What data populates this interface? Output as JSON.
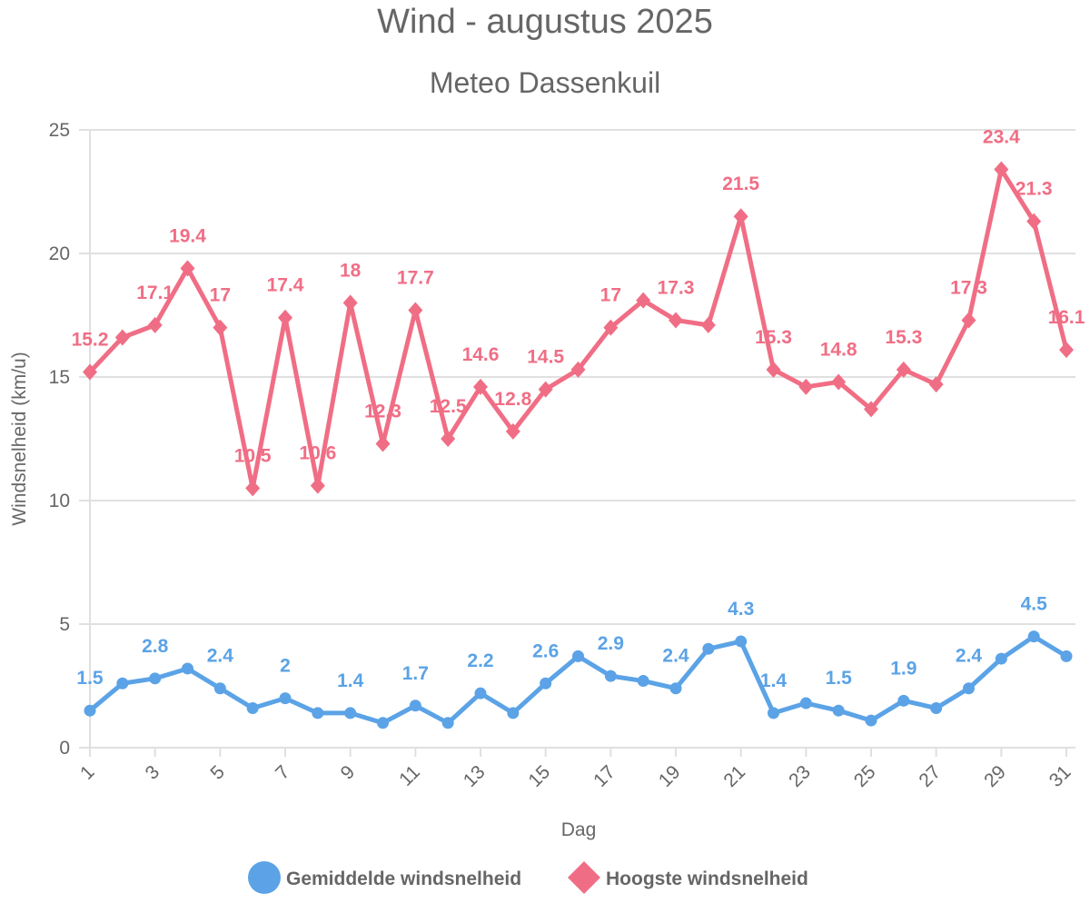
{
  "chart_data": {
    "type": "line",
    "title": "Wind - augustus 2025",
    "subtitle": "Meteo Dassenkuil",
    "xlabel": "Dag",
    "ylabel": "Windsnelheid (km/u)",
    "ylim": [
      0,
      25
    ],
    "yticks": [
      0,
      5,
      10,
      15,
      20,
      25
    ],
    "xticks": [
      1,
      3,
      5,
      7,
      9,
      11,
      13,
      15,
      17,
      19,
      21,
      23,
      25,
      27,
      29,
      31
    ],
    "grid": true,
    "legend_position": "bottom",
    "x": [
      1,
      2,
      3,
      4,
      5,
      6,
      7,
      8,
      9,
      10,
      11,
      12,
      13,
      14,
      15,
      16,
      17,
      18,
      19,
      20,
      21,
      22,
      23,
      24,
      25,
      26,
      27,
      28,
      29,
      30,
      31
    ],
    "series": [
      {
        "name": "Gemiddelde windsnelheid",
        "color": "#5ba3e6",
        "marker": "circle",
        "values": [
          1.5,
          2.6,
          2.8,
          3.2,
          2.4,
          1.6,
          2.0,
          1.4,
          1.4,
          1.0,
          1.7,
          1.0,
          2.2,
          1.4,
          2.6,
          3.7,
          2.9,
          2.7,
          2.4,
          4.0,
          4.3,
          1.4,
          1.8,
          1.5,
          1.1,
          1.9,
          1.6,
          2.4,
          3.6,
          4.5,
          3.7
        ],
        "labeled_days": [
          1,
          3,
          5,
          7,
          9,
          11,
          13,
          15,
          17,
          19,
          21,
          22,
          24,
          26,
          28,
          30
        ]
      },
      {
        "name": "Hoogste windsnelheid",
        "color": "#f06e85",
        "marker": "diamond",
        "values": [
          15.2,
          16.6,
          17.1,
          19.4,
          17.0,
          10.5,
          17.4,
          10.6,
          18.0,
          12.3,
          17.7,
          12.5,
          14.6,
          12.8,
          14.5,
          15.3,
          17.0,
          18.1,
          17.3,
          17.1,
          21.5,
          15.3,
          14.6,
          14.8,
          13.7,
          15.3,
          14.7,
          17.3,
          23.4,
          21.3,
          16.1
        ],
        "labeled_days": [
          1,
          3,
          4,
          5,
          6,
          7,
          8,
          9,
          10,
          11,
          12,
          13,
          14,
          15,
          17,
          19,
          21,
          22,
          24,
          26,
          28,
          29,
          30,
          31
        ]
      }
    ]
  }
}
